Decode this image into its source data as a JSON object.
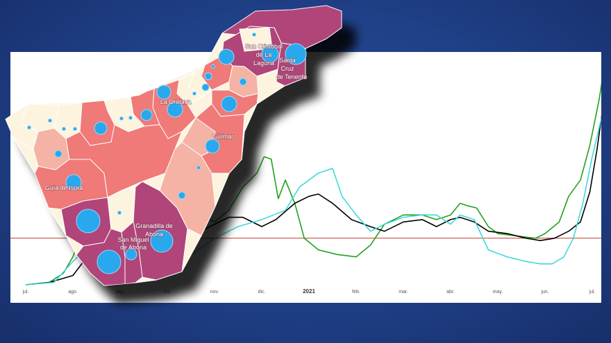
{
  "chart_data": {
    "type": "line",
    "xlabel": "",
    "ylabel": "",
    "x_ticks": [
      "jul.",
      "ago.",
      "sep.",
      "oct.",
      "nov.",
      "dic.",
      "2021",
      "feb.",
      "mar.",
      "abr.",
      "may.",
      "jun.",
      "jul."
    ],
    "reference_line": {
      "value": 0.2,
      "color": "#c0392b"
    },
    "ylim": [
      0,
      1
    ],
    "series": [
      {
        "color": "#22a01c",
        "x": [
          0,
          0.5,
          0.8,
          1,
          1.2,
          1.5,
          2,
          2.4,
          3,
          3.5,
          4,
          4.3,
          4.6,
          4.9,
          5.05,
          5.2,
          5.35,
          5.5,
          5.7,
          5.9,
          6.2,
          6.6,
          7,
          7.3,
          7.6,
          8,
          8.4,
          8.7,
          9,
          9.2,
          9.35,
          9.55,
          9.8,
          10,
          10.4,
          10.8,
          11,
          11.3,
          11.5,
          11.75,
          11.95,
          12.15,
          12.3
        ],
        "values": [
          0,
          0.01,
          0.05,
          0.12,
          0.23,
          0.26,
          0.24,
          0.22,
          0.25,
          0.32,
          0.27,
          0.32,
          0.42,
          0.48,
          0.55,
          0.54,
          0.37,
          0.45,
          0.35,
          0.2,
          0.15,
          0.13,
          0.12,
          0.17,
          0.26,
          0.3,
          0.3,
          0.28,
          0.3,
          0.35,
          0.34,
          0.33,
          0.25,
          0.22,
          0.21,
          0.2,
          0.22,
          0.27,
          0.38,
          0.45,
          0.6,
          0.8,
          1.0
        ]
      },
      {
        "color": "#000000",
        "x": [
          0,
          0.5,
          1,
          1.3,
          1.8,
          2.3,
          2.8,
          3.3,
          3.8,
          4.3,
          4.6,
          5,
          5.3,
          5.7,
          6,
          6.2,
          6.5,
          6.9,
          7.3,
          7.6,
          8,
          8.4,
          8.7,
          9,
          9.2,
          9.5,
          9.8,
          10.2,
          10.6,
          10.9,
          11.2,
          11.5,
          11.75,
          11.95,
          12.1,
          12.25
        ],
        "values": [
          0,
          0.01,
          0.04,
          0.12,
          0.16,
          0.18,
          0.19,
          0.21,
          0.24,
          0.29,
          0.29,
          0.25,
          0.28,
          0.35,
          0.38,
          0.39,
          0.35,
          0.28,
          0.25,
          0.23,
          0.27,
          0.28,
          0.25,
          0.28,
          0.29,
          0.27,
          0.23,
          0.22,
          0.2,
          0.19,
          0.2,
          0.23,
          0.27,
          0.4,
          0.58,
          0.8
        ]
      },
      {
        "color": "#40d8d8",
        "x": [
          0,
          0.6,
          1,
          1.3,
          1.6,
          2,
          2.5,
          3,
          3.5,
          4,
          4.5,
          5,
          5.5,
          5.8,
          6,
          6.2,
          6.5,
          6.7,
          7,
          7.3,
          7.6,
          8,
          8.4,
          8.7,
          9,
          9.2,
          9.5,
          9.8,
          10.2,
          10.6,
          10.9,
          11.15,
          11.4,
          11.6,
          11.8,
          12,
          12.2
        ],
        "values": [
          0,
          0.01,
          0.1,
          0.16,
          0.08,
          0.07,
          0.09,
          0.1,
          0.13,
          0.2,
          0.25,
          0.28,
          0.32,
          0.42,
          0.45,
          0.48,
          0.5,
          0.38,
          0.3,
          0.23,
          0.26,
          0.29,
          0.3,
          0.3,
          0.26,
          0.3,
          0.28,
          0.15,
          0.12,
          0.1,
          0.09,
          0.09,
          0.12,
          0.2,
          0.35,
          0.55,
          0.72
        ]
      }
    ]
  },
  "map": {
    "labels": {
      "san_cristobal": [
        "San Cristóbal",
        "de La",
        "Laguna"
      ],
      "santa_cruz": [
        "Santa",
        "Cruz",
        "de Tenerife"
      ],
      "la_orotava": "La Orotava",
      "guimar": "Güímar",
      "guia_de_isora": "Guía de Isora",
      "granadilla": [
        "Granadilla de",
        "Abona"
      ],
      "san_miguel": [
        "San Miguel",
        "de Abona"
      ]
    },
    "colors": {
      "dark": "#b0457a",
      "salmon": "#ef7a78",
      "light_salmon": "#f4b3a4",
      "cream": "#fdf4e0",
      "bubble": "#2aa8ee"
    }
  }
}
